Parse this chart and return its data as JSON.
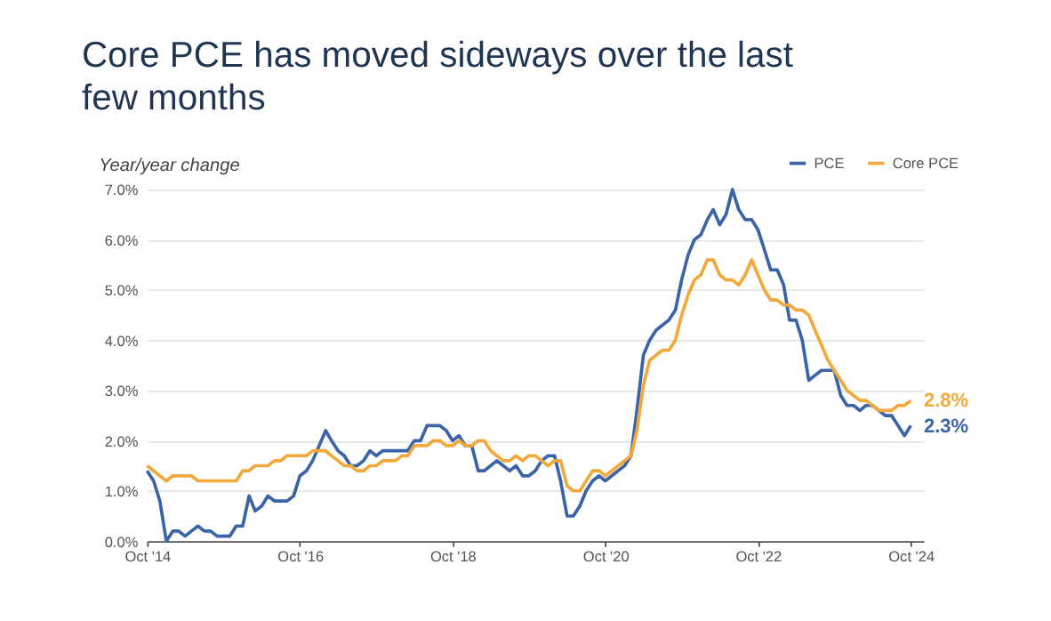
{
  "chart_data": {
    "type": "line",
    "title": "Core PCE has moved sideways over the last few months",
    "ylabel": "Year/year change",
    "x": [
      "2014-10",
      "2014-11",
      "2014-12",
      "2015-01",
      "2015-02",
      "2015-03",
      "2015-04",
      "2015-05",
      "2015-06",
      "2015-07",
      "2015-08",
      "2015-09",
      "2015-10",
      "2015-11",
      "2015-12",
      "2016-01",
      "2016-02",
      "2016-03",
      "2016-04",
      "2016-05",
      "2016-06",
      "2016-07",
      "2016-08",
      "2016-09",
      "2016-10",
      "2016-11",
      "2016-12",
      "2017-01",
      "2017-02",
      "2017-03",
      "2017-04",
      "2017-05",
      "2017-06",
      "2017-07",
      "2017-08",
      "2017-09",
      "2017-10",
      "2017-11",
      "2017-12",
      "2018-01",
      "2018-02",
      "2018-03",
      "2018-04",
      "2018-05",
      "2018-06",
      "2018-07",
      "2018-08",
      "2018-09",
      "2018-10",
      "2018-11",
      "2018-12",
      "2019-01",
      "2019-02",
      "2019-03",
      "2019-04",
      "2019-05",
      "2019-06",
      "2019-07",
      "2019-08",
      "2019-09",
      "2019-10",
      "2019-11",
      "2019-12",
      "2020-01",
      "2020-02",
      "2020-03",
      "2020-04",
      "2020-05",
      "2020-06",
      "2020-07",
      "2020-08",
      "2020-09",
      "2020-10",
      "2020-11",
      "2020-12",
      "2021-01",
      "2021-02",
      "2021-03",
      "2021-04",
      "2021-05",
      "2021-06",
      "2021-07",
      "2021-08",
      "2021-09",
      "2021-10",
      "2021-11",
      "2021-12",
      "2022-01",
      "2022-02",
      "2022-03",
      "2022-04",
      "2022-05",
      "2022-06",
      "2022-07",
      "2022-08",
      "2022-09",
      "2022-10",
      "2022-11",
      "2022-12",
      "2023-01",
      "2023-02",
      "2023-03",
      "2023-04",
      "2023-05",
      "2023-06",
      "2023-07",
      "2023-08",
      "2023-09",
      "2023-10",
      "2023-11",
      "2023-12",
      "2024-01",
      "2024-02",
      "2024-03",
      "2024-04",
      "2024-05",
      "2024-06",
      "2024-07",
      "2024-08",
      "2024-09",
      "2024-10"
    ],
    "series": [
      {
        "name": "PCE",
        "color": "#3b64a8",
        "values": [
          1.4,
          1.2,
          0.8,
          0.0,
          0.2,
          0.2,
          0.1,
          0.2,
          0.3,
          0.2,
          0.2,
          0.1,
          0.1,
          0.1,
          0.3,
          0.3,
          0.9,
          0.6,
          0.7,
          0.9,
          0.8,
          0.8,
          0.8,
          0.9,
          1.3,
          1.4,
          1.6,
          1.9,
          2.2,
          2.0,
          1.8,
          1.7,
          1.5,
          1.5,
          1.6,
          1.8,
          1.7,
          1.8,
          1.8,
          1.8,
          1.8,
          1.8,
          2.0,
          2.0,
          2.3,
          2.3,
          2.3,
          2.2,
          2.0,
          2.1,
          1.9,
          1.9,
          1.4,
          1.4,
          1.5,
          1.6,
          1.5,
          1.4,
          1.5,
          1.3,
          1.3,
          1.4,
          1.6,
          1.7,
          1.7,
          1.2,
          0.5,
          0.5,
          0.7,
          1.0,
          1.2,
          1.3,
          1.2,
          1.3,
          1.4,
          1.5,
          1.7,
          2.6,
          3.7,
          4.0,
          4.2,
          4.3,
          4.4,
          4.6,
          5.2,
          5.7,
          6.0,
          6.1,
          6.4,
          6.6,
          6.3,
          6.5,
          7.0,
          6.6,
          6.4,
          6.4,
          6.2,
          5.8,
          5.4,
          5.4,
          5.1,
          4.4,
          4.4,
          4.0,
          3.2,
          3.3,
          3.4,
          3.4,
          3.4,
          2.9,
          2.7,
          2.7,
          2.6,
          2.7,
          2.7,
          2.6,
          2.5,
          2.5,
          2.3,
          2.1,
          2.3
        ],
        "value_labels": [
          null,
          null,
          null,
          null,
          null,
          null,
          null,
          null,
          null,
          null,
          null,
          null,
          null,
          null,
          null,
          null,
          null,
          null,
          null,
          null,
          null,
          null,
          null,
          null,
          null,
          null,
          null,
          null,
          null,
          null,
          null,
          null,
          null,
          null,
          null,
          null,
          null,
          null,
          null,
          null,
          null,
          null,
          null,
          null,
          null,
          null,
          null,
          null,
          null,
          null,
          null,
          null,
          null,
          null,
          null,
          null,
          null,
          null,
          null,
          null,
          null,
          null,
          null,
          null,
          null,
          null,
          null,
          null,
          null,
          null,
          null,
          null,
          null,
          null,
          null,
          null,
          null,
          null,
          null,
          null,
          null,
          null,
          null,
          null,
          null,
          null,
          null,
          null,
          null,
          null,
          null,
          null,
          null,
          null,
          null,
          null,
          null,
          null,
          null,
          null,
          null,
          null,
          null,
          null,
          null,
          null,
          null,
          null,
          null,
          null,
          null,
          null,
          null,
          null,
          null,
          null,
          null,
          null,
          null,
          null,
          "2.3%"
        ]
      },
      {
        "name": "Core PCE",
        "color": "#f2a83a",
        "values": [
          1.5,
          1.4,
          1.3,
          1.2,
          1.3,
          1.3,
          1.3,
          1.3,
          1.2,
          1.2,
          1.2,
          1.2,
          1.2,
          1.2,
          1.2,
          1.4,
          1.4,
          1.5,
          1.5,
          1.5,
          1.6,
          1.6,
          1.7,
          1.7,
          1.7,
          1.7,
          1.8,
          1.8,
          1.8,
          1.7,
          1.6,
          1.5,
          1.5,
          1.4,
          1.4,
          1.5,
          1.5,
          1.6,
          1.6,
          1.6,
          1.7,
          1.7,
          1.9,
          1.9,
          1.9,
          2.0,
          2.0,
          1.9,
          1.9,
          2.0,
          1.9,
          1.9,
          2.0,
          2.0,
          1.8,
          1.7,
          1.6,
          1.6,
          1.7,
          1.6,
          1.7,
          1.7,
          1.6,
          1.5,
          1.6,
          1.6,
          1.1,
          1.0,
          1.0,
          1.2,
          1.4,
          1.4,
          1.3,
          1.4,
          1.5,
          1.6,
          1.7,
          2.2,
          3.1,
          3.6,
          3.7,
          3.8,
          3.8,
          4.0,
          4.5,
          4.9,
          5.2,
          5.3,
          5.6,
          5.6,
          5.3,
          5.2,
          5.2,
          5.1,
          5.3,
          5.6,
          5.3,
          5.0,
          4.8,
          4.8,
          4.7,
          4.7,
          4.6,
          4.6,
          4.5,
          4.2,
          3.9,
          3.6,
          3.4,
          3.2,
          3.0,
          2.9,
          2.8,
          2.8,
          2.7,
          2.6,
          2.6,
          2.6,
          2.7,
          2.7,
          2.8
        ],
        "value_labels": [
          null,
          null,
          null,
          null,
          null,
          null,
          null,
          null,
          null,
          null,
          null,
          null,
          null,
          null,
          null,
          null,
          null,
          null,
          null,
          null,
          null,
          null,
          null,
          null,
          null,
          null,
          null,
          null,
          null,
          null,
          null,
          null,
          null,
          null,
          null,
          null,
          null,
          null,
          null,
          null,
          null,
          null,
          null,
          null,
          null,
          null,
          null,
          null,
          null,
          null,
          null,
          null,
          null,
          null,
          null,
          null,
          null,
          null,
          null,
          null,
          null,
          null,
          null,
          null,
          null,
          null,
          null,
          null,
          null,
          null,
          null,
          null,
          null,
          null,
          null,
          null,
          null,
          null,
          null,
          null,
          null,
          null,
          null,
          null,
          null,
          null,
          null,
          null,
          null,
          null,
          null,
          null,
          null,
          null,
          null,
          null,
          null,
          null,
          null,
          null,
          null,
          null,
          null,
          null,
          null,
          null,
          null,
          null,
          null,
          null,
          null,
          null,
          null,
          null,
          null,
          null,
          null,
          null,
          null,
          null,
          "2.8%"
        ]
      }
    ],
    "xlim": [
      "2014-10",
      "2024-12"
    ],
    "xticks": [
      {
        "value": "2014-10",
        "label": "Oct '14"
      },
      {
        "value": "2016-10",
        "label": "Oct '16"
      },
      {
        "value": "2018-10",
        "label": "Oct '18"
      },
      {
        "value": "2020-10",
        "label": "Oct '20"
      },
      {
        "value": "2022-10",
        "label": "Oct '22"
      },
      {
        "value": "2024-10",
        "label": "Oct '24"
      }
    ],
    "ylim": [
      0,
      7
    ],
    "yticks": [
      {
        "value": 0,
        "label": "0.0%"
      },
      {
        "value": 1,
        "label": "1.0%"
      },
      {
        "value": 2,
        "label": "2.0%"
      },
      {
        "value": 3,
        "label": "3.0%"
      },
      {
        "value": 4,
        "label": "4.0%"
      },
      {
        "value": 5,
        "label": "5.0%"
      },
      {
        "value": 6,
        "label": "6.0%"
      },
      {
        "value": 7,
        "label": "7.0%"
      }
    ],
    "grid": "y",
    "legend": "top right",
    "line_style": "solid",
    "marker": "none"
  }
}
